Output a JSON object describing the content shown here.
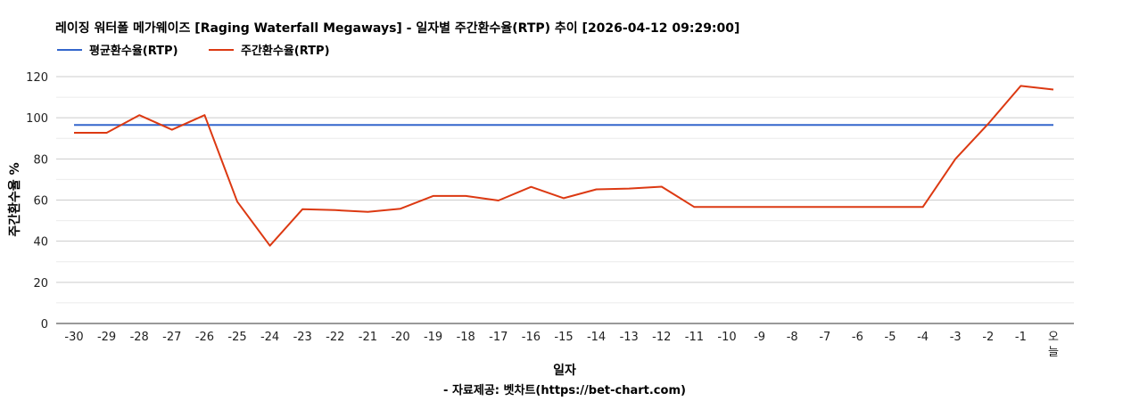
{
  "chart_data": {
    "type": "line",
    "title": "레이징 워터폴 메가웨이즈 [Raging Waterfall Megaways] - 일자별 주간환수율(RTP) 추이 [2026-04-12 09:29:00]",
    "xlabel": "일자",
    "ylabel": "주간환수율 %",
    "source": "- 자료제공: 벳차트(https://bet-chart.com)",
    "ylim": [
      0,
      120
    ],
    "yticks": [
      0,
      20,
      40,
      60,
      80,
      100,
      120
    ],
    "grid": true,
    "legend_position": "top-left",
    "categories": [
      "-30",
      "-29",
      "-28",
      "-27",
      "-26",
      "-25",
      "-24",
      "-23",
      "-22",
      "-21",
      "-20",
      "-19",
      "-18",
      "-17",
      "-16",
      "-15",
      "-14",
      "-13",
      "-12",
      "-11",
      "-10",
      "-9",
      "-8",
      "-7",
      "-6",
      "-5",
      "-4",
      "-3",
      "-2",
      "-1",
      "오늘"
    ],
    "series": [
      {
        "name": "평균환수율(RTP)",
        "color": "#3366cc",
        "values": [
          96.5,
          96.5,
          96.5,
          96.5,
          96.5,
          96.5,
          96.5,
          96.5,
          96.5,
          96.5,
          96.5,
          96.5,
          96.5,
          96.5,
          96.5,
          96.5,
          96.5,
          96.5,
          96.5,
          96.5,
          96.5,
          96.5,
          96.5,
          96.5,
          96.5,
          96.5,
          96.5,
          96.5,
          96.5,
          96.5,
          96.5
        ]
      },
      {
        "name": "주간환수율(RTP)",
        "color": "#dc3912",
        "values": [
          92.7,
          92.7,
          101.3,
          94.2,
          101.3,
          59.2,
          37.8,
          55.6,
          55.1,
          54.3,
          55.8,
          62.0,
          62.0,
          59.8,
          66.4,
          60.9,
          65.2,
          65.6,
          66.5,
          56.6,
          56.6,
          56.6,
          56.6,
          56.6,
          56.6,
          56.6,
          56.6,
          80.0,
          97.0,
          115.5,
          113.7
        ]
      }
    ]
  }
}
